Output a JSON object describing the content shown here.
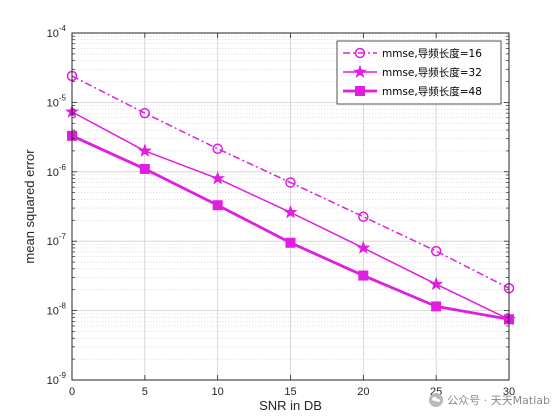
{
  "chart_data": {
    "type": "line",
    "title": "",
    "xlabel": "SNR in DB",
    "ylabel": "mean squared error",
    "x": [
      0,
      5,
      10,
      15,
      20,
      25,
      30
    ],
    "xlim": [
      0,
      30
    ],
    "ylim": [
      1e-09,
      0.0001
    ],
    "yscale": "log",
    "x_ticks": [
      "0",
      "5",
      "10",
      "15",
      "20",
      "25",
      "30"
    ],
    "y_ticks": [
      {
        "base": "10",
        "exp": "-9"
      },
      {
        "base": "10",
        "exp": "-8"
      },
      {
        "base": "10",
        "exp": "-7"
      },
      {
        "base": "10",
        "exp": "-6"
      },
      {
        "base": "10",
        "exp": "-5"
      },
      {
        "base": "10",
        "exp": "-4"
      }
    ],
    "grid": true,
    "minor_grid": true,
    "legend_position": "top-right",
    "series": [
      {
        "name": "mmse,导频长度=16",
        "color": "#e01ee0",
        "line": "dashdot",
        "marker": "circle",
        "values": [
          2.4e-05,
          7e-06,
          2.15e-06,
          7e-07,
          2.25e-07,
          7.2e-08,
          2.1e-08
        ]
      },
      {
        "name": "mmse,导频长度=32",
        "color": "#e01ee0",
        "line": "solid",
        "marker": "star",
        "values": [
          7.3e-06,
          2e-06,
          8e-07,
          2.6e-07,
          8e-08,
          2.4e-08,
          7.5e-09
        ]
      },
      {
        "name": "mmse,导频长度=48",
        "color": "#e01ee0",
        "line": "solid-thick",
        "marker": "square",
        "values": [
          3.3e-06,
          1.1e-06,
          3.3e-07,
          9.5e-08,
          3.2e-08,
          1.15e-08,
          7.5e-09
        ]
      }
    ]
  },
  "watermark": {
    "icon": "wechat-icon",
    "text": "公众号 · 天天Matlab"
  }
}
